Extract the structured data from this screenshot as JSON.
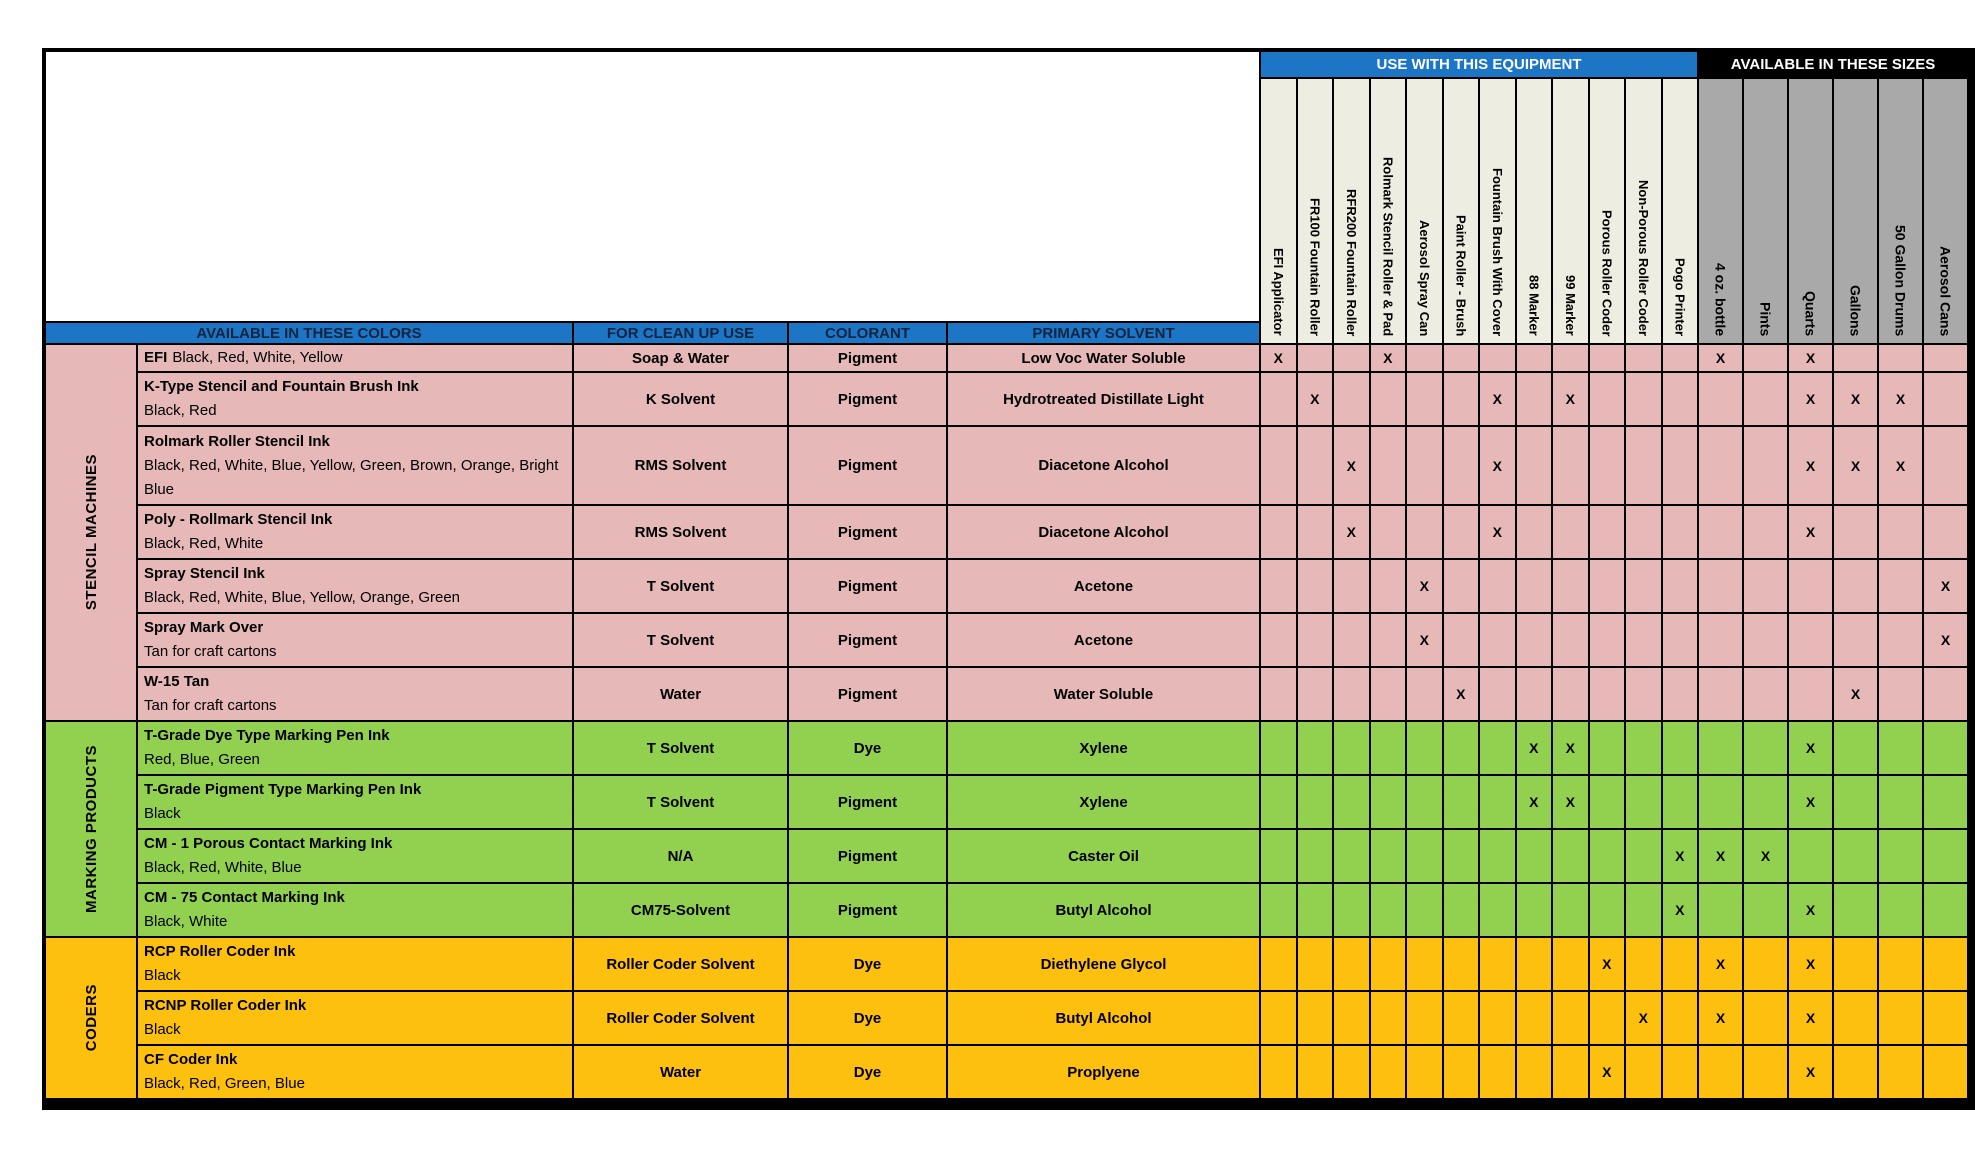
{
  "mark": "X",
  "header": {
    "equipment_title": "USE WITH THIS EQUIPMENT",
    "sizes_title": "AVAILABLE IN THESE SIZES",
    "colors_title": "AVAILABLE IN THESE COLORS",
    "cleanup_title": "FOR CLEAN UP USE",
    "colorant_title": "COLORANT",
    "solvent_title": "PRIMARY SOLVENT"
  },
  "colors": {
    "blue_band": "#1d76c5",
    "band_text": "#0e2440",
    "stencil_pink": "#e6b9b8",
    "marking_green": "#92d050",
    "coders_orange": "#fec00f",
    "equipment_col_bg": "#eeede1",
    "sizes_col_bg": "#a9a9a9"
  },
  "columns": {
    "equipment": [
      "EFI Applicator",
      "FR100 Fountain Roller",
      "RFR200 Fountain Roller",
      "Rolmark Stencil Roller & Pad",
      "Aerosol Spray Can",
      "Paint Roller - Brush",
      "Fountain Brush With Cover",
      "88 Marker",
      "99 Marker",
      "Porous Roller Coder",
      "Non-Porous Roller Coder",
      "Pogo Printer"
    ],
    "sizes": [
      "4 oz. bottle",
      "Pints",
      "Quarts",
      "Gallons",
      "50 Gallon Drums",
      "Aerosol Cans"
    ]
  },
  "groups": [
    {
      "label": "STENCIL MACHINES",
      "color": "#e6b9b8",
      "rows": [
        {
          "name": "EFI",
          "colors": "Black, Red, White, Yellow",
          "inline": true,
          "cleanup": "Soap & Water",
          "colorant": "Pigment",
          "solvent": "Low Voc Water Soluble",
          "marks": [
            1,
            4,
            13,
            15
          ]
        },
        {
          "name": "K-Type Stencil and Fountain Brush Ink",
          "colors": "Black, Red",
          "cleanup": "K Solvent",
          "colorant": "Pigment",
          "solvent": "Hydrotreated Distillate Light",
          "marks": [
            2,
            7,
            9,
            15,
            16,
            17
          ]
        },
        {
          "name": "Rolmark Roller Stencil Ink",
          "colors": "Black, Red, White, Blue, Yellow, Green, Brown, Orange, Bright Blue",
          "cleanup": "RMS Solvent",
          "colorant": "Pigment",
          "solvent": "Diacetone Alcohol",
          "marks": [
            3,
            7,
            15,
            16,
            17
          ]
        },
        {
          "name": "Poly - Rollmark Stencil Ink",
          "colors": "Black, Red, White",
          "cleanup": "RMS Solvent",
          "colorant": "Pigment",
          "solvent": "Diacetone Alcohol",
          "marks": [
            3,
            7,
            15
          ]
        },
        {
          "name": "Spray Stencil Ink",
          "colors": "Black, Red, White, Blue, Yellow, Orange, Green",
          "cleanup": "T Solvent",
          "colorant": "Pigment",
          "solvent": "Acetone",
          "marks": [
            5,
            18
          ]
        },
        {
          "name": "Spray Mark Over",
          "colors": "Tan for craft cartons",
          "cleanup": "T Solvent",
          "colorant": "Pigment",
          "solvent": "Acetone",
          "marks": [
            5,
            18
          ]
        },
        {
          "name": "W-15 Tan",
          "colors": "Tan for craft cartons",
          "cleanup": "Water",
          "colorant": "Pigment",
          "solvent": "Water Soluble",
          "marks": [
            6,
            16
          ]
        }
      ]
    },
    {
      "label": "MARKING PRODUCTS",
      "color": "#92d050",
      "rows": [
        {
          "name": "T-Grade Dye Type Marking Pen Ink",
          "colors": "Red, Blue, Green",
          "cleanup": "T Solvent",
          "colorant": "Dye",
          "solvent": "Xylene",
          "marks": [
            8,
            9,
            15
          ]
        },
        {
          "name": "T-Grade Pigment Type Marking Pen Ink",
          "colors": "Black",
          "cleanup": "T Solvent",
          "colorant": "Pigment",
          "solvent": "Xylene",
          "marks": [
            8,
            9,
            15
          ]
        },
        {
          "name": "CM - 1 Porous Contact Marking Ink",
          "colors": "Black, Red, White, Blue",
          "cleanup": "N/A",
          "colorant": "Pigment",
          "solvent": "Caster Oil",
          "marks": [
            12,
            13,
            14
          ]
        },
        {
          "name": "CM - 75 Contact Marking Ink",
          "colors": "Black, White",
          "cleanup": "CM75-Solvent",
          "colorant": "Pigment",
          "solvent": "Butyl Alcohol",
          "marks": [
            12,
            15
          ]
        }
      ]
    },
    {
      "label": "CODERS",
      "color": "#fec00f",
      "rows": [
        {
          "name": "RCP Roller Coder Ink",
          "colors": "Black",
          "cleanup": "Roller Coder Solvent",
          "colorant": "Dye",
          "solvent": "Diethylene Glycol",
          "marks": [
            10,
            13,
            15
          ]
        },
        {
          "name": "RCNP Roller Coder Ink",
          "colors": "Black",
          "cleanup": "Roller Coder Solvent",
          "colorant": "Dye",
          "solvent": "Butyl Alcohol",
          "marks": [
            11,
            13,
            15
          ]
        },
        {
          "name": "CF Coder Ink",
          "colors": "Black, Red, Green, Blue",
          "cleanup": "Water",
          "colorant": "Dye",
          "solvent": "Proplyene",
          "marks": [
            10,
            15
          ]
        }
      ]
    }
  ]
}
